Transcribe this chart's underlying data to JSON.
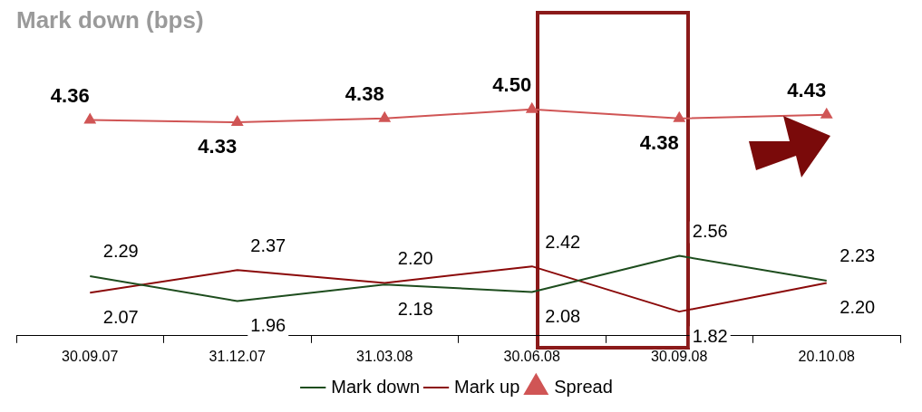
{
  "chart_data": {
    "type": "line",
    "title": "Mark down (bps)",
    "categories": [
      "30.09.07",
      "31.12.07",
      "31.03.08",
      "30.06.08",
      "30.09.08",
      "20.10.08"
    ],
    "series": [
      {
        "name": "Mark down",
        "color": "#1e4d1e",
        "marker": "none",
        "values": [
          2.29,
          1.96,
          2.18,
          2.08,
          2.56,
          2.23
        ],
        "value_labels": [
          "2.29",
          "1.96",
          "2.18",
          "2.08",
          "2.56",
          "2.23"
        ]
      },
      {
        "name": "Mark up",
        "color": "#8b0a0a",
        "marker": "none",
        "values": [
          2.07,
          2.37,
          2.2,
          2.42,
          1.82,
          2.2
        ],
        "value_labels": [
          "2.07",
          "2.37",
          "2.20",
          "2.42",
          "1.82",
          "2.20"
        ]
      },
      {
        "name": "Spread",
        "color": "#d05555",
        "marker": "triangle",
        "values": [
          4.36,
          4.33,
          4.38,
          4.5,
          4.38,
          4.43
        ],
        "value_labels": [
          "4.36",
          "4.33",
          "4.38",
          "4.50",
          "4.38",
          "4.43"
        ]
      }
    ],
    "legend": "bottom",
    "grid": false
  }
}
